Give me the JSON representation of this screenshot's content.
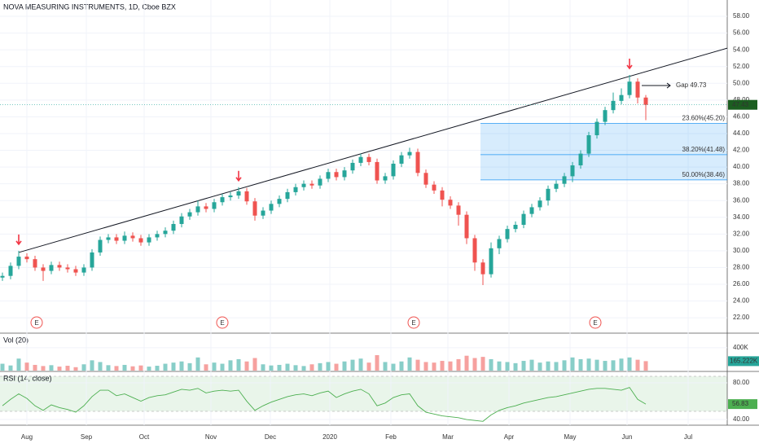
{
  "chart_data": {
    "type": "candlestick",
    "title": "NOVA MEASURING INSTRUMENTS, 1D, Cboe BZX",
    "up_color": "#26a69a",
    "down_color": "#ef5350",
    "xlim": [
      -0.3,
      89
    ],
    "xticks": [
      {
        "value": 3,
        "label": "Aug"
      },
      {
        "value": 10.3,
        "label": "Sep"
      },
      {
        "value": 17.4,
        "label": "Oct"
      },
      {
        "value": 25.6,
        "label": "Nov"
      },
      {
        "value": 32.9,
        "label": "Dec"
      },
      {
        "value": 40.2,
        "label": "2020"
      },
      {
        "value": 47.7,
        "label": "Feb"
      },
      {
        "value": 54.7,
        "label": "Mar"
      },
      {
        "value": 62.2,
        "label": "Apr"
      },
      {
        "value": 69.7,
        "label": "May"
      },
      {
        "value": 76.7,
        "label": "Jun"
      },
      {
        "value": 84.2,
        "label": "Jul"
      }
    ],
    "ylim": [
      20.26,
      59.95
    ],
    "yticks": [
      {
        "value": 22,
        "label": "22.00"
      },
      {
        "value": 24,
        "label": "24.00"
      },
      {
        "value": 26,
        "label": "26.00"
      },
      {
        "value": 28,
        "label": "28.00"
      },
      {
        "value": 30,
        "label": "30.00"
      },
      {
        "value": 32,
        "label": "32.00"
      },
      {
        "value": 34,
        "label": "34.00"
      },
      {
        "value": 36,
        "label": "36.00"
      },
      {
        "value": 38,
        "label": "38.00"
      },
      {
        "value": 40,
        "label": "40.00"
      },
      {
        "value": 42,
        "label": "42.00"
      },
      {
        "value": 44,
        "label": "44.00"
      },
      {
        "value": 46,
        "label": "46.00"
      },
      {
        "value": 48,
        "label": "48.00"
      },
      {
        "value": 50,
        "label": "50.00"
      },
      {
        "value": 52,
        "label": "52.00"
      },
      {
        "value": 54,
        "label": "54.00"
      },
      {
        "value": 56,
        "label": "56.00"
      },
      {
        "value": 58,
        "label": "58.00"
      }
    ],
    "open": [
      26.8,
      27.0,
      28.2,
      29.3,
      29.0,
      28.0,
      27.6,
      28.3,
      28.0,
      27.8,
      27.4,
      28.0,
      29.8,
      31.3,
      31.6,
      31.2,
      31.8,
      31.5,
      31.0,
      31.6,
      32.0,
      32.4,
      33.2,
      34.1,
      34.6,
      35.3,
      35.0,
      35.8,
      36.4,
      36.6,
      37.1,
      35.9,
      34.2,
      34.8,
      35.6,
      36.2,
      37.0,
      37.6,
      38.0,
      37.8,
      38.6,
      39.4,
      38.8,
      39.6,
      40.5,
      41.2,
      40.6,
      38.4,
      38.9,
      40.4,
      41.4,
      41.8,
      39.3,
      37.9,
      37.2,
      36.1,
      35.4,
      34.3,
      31.5,
      28.6,
      27.2,
      30.3,
      31.4,
      32.6,
      33.1,
      34.4,
      35.2,
      36.0,
      37.4,
      38.0,
      38.9,
      40.2,
      41.6,
      43.8,
      45.4,
      46.8,
      47.9,
      48.6,
      50.2,
      48.3
    ],
    "high": [
      27.4,
      28.6,
      30.0,
      29.7,
      29.4,
      28.4,
      28.7,
      28.7,
      28.4,
      28.2,
      28.4,
      30.2,
      31.7,
      32.0,
      32.0,
      32.3,
      32.2,
      31.9,
      32.0,
      32.4,
      32.8,
      33.6,
      34.5,
      35.0,
      36.0,
      35.7,
      36.2,
      36.8,
      37.0,
      37.6,
      37.5,
      36.3,
      35.2,
      36.0,
      36.6,
      37.4,
      38.0,
      38.4,
      38.4,
      39.0,
      39.8,
      39.8,
      40.0,
      40.9,
      41.6,
      41.6,
      41.0,
      39.3,
      40.8,
      41.8,
      42.3,
      42.2,
      39.7,
      38.3,
      37.6,
      36.5,
      35.8,
      34.7,
      31.9,
      29.0,
      31.0,
      31.8,
      33.0,
      33.5,
      34.8,
      35.6,
      36.4,
      37.8,
      38.4,
      39.3,
      40.6,
      42.0,
      44.2,
      45.8,
      47.2,
      48.9,
      49.4,
      51.0,
      50.6,
      48.6
    ],
    "low": [
      26.4,
      26.6,
      27.8,
      28.6,
      27.6,
      26.4,
      27.2,
      27.6,
      27.4,
      27.0,
      27.0,
      27.6,
      29.4,
      30.9,
      30.8,
      30.8,
      31.1,
      30.6,
      30.6,
      31.2,
      31.6,
      32.0,
      32.8,
      33.7,
      34.2,
      34.6,
      34.6,
      35.4,
      36.0,
      36.2,
      35.5,
      33.6,
      33.8,
      34.4,
      35.2,
      35.8,
      36.6,
      37.2,
      37.4,
      37.4,
      38.2,
      38.4,
      38.4,
      39.2,
      40.1,
      40.2,
      38.0,
      38.0,
      38.5,
      40.0,
      41.0,
      38.9,
      37.5,
      36.8,
      35.3,
      35.0,
      33.0,
      30.8,
      27.6,
      25.9,
      26.8,
      29.6,
      31.0,
      32.2,
      32.7,
      34.0,
      34.8,
      35.4,
      37.0,
      37.6,
      38.2,
      39.8,
      41.2,
      43.4,
      45.0,
      46.4,
      47.5,
      48.2,
      47.6,
      45.6
    ],
    "close": [
      27.0,
      28.2,
      29.3,
      29.0,
      28.0,
      27.6,
      28.3,
      28.0,
      27.8,
      27.4,
      28.0,
      29.8,
      31.3,
      31.6,
      31.2,
      31.8,
      31.5,
      31.0,
      31.6,
      32.0,
      32.4,
      33.2,
      34.1,
      34.6,
      35.3,
      35.0,
      35.8,
      36.4,
      36.6,
      37.1,
      35.9,
      34.2,
      34.8,
      35.6,
      36.2,
      37.0,
      37.6,
      38.0,
      37.8,
      38.6,
      39.4,
      38.8,
      39.6,
      40.5,
      41.2,
      40.6,
      38.4,
      38.9,
      40.4,
      41.4,
      41.8,
      39.3,
      37.9,
      37.2,
      36.1,
      35.4,
      34.3,
      31.5,
      28.6,
      27.2,
      30.3,
      31.4,
      32.6,
      33.1,
      34.4,
      35.2,
      36.0,
      37.4,
      38.0,
      38.9,
      40.2,
      41.6,
      43.8,
      45.4,
      46.8,
      47.9,
      48.6,
      50.2,
      48.3,
      47.43
    ],
    "last_price": 47.43,
    "trendline": {
      "x": [
        2,
        89
      ],
      "y": [
        29.8,
        54.2
      ]
    },
    "fib": {
      "x_start": 58.7,
      "levels": [
        {
          "value": 45.2,
          "label": "23.60%(45.20)"
        },
        {
          "value": 41.48,
          "label": "38.20%(41.48)"
        },
        {
          "value": 38.46,
          "label": "50.00%(38.46)"
        }
      ]
    },
    "signals": [
      2,
      29,
      77
    ],
    "earnings": {
      "x": [
        4.2,
        27,
        50.5,
        72.8
      ],
      "label": "E"
    },
    "gap": {
      "value": 49.73,
      "label": "Gap 49.73"
    },
    "volume": {
      "title": "Vol (20)",
      "ylim": [
        0,
        640
      ],
      "yticks": [
        {
          "value": 400,
          "label": "400K"
        }
      ],
      "last": {
        "value": 165.222,
        "label": "165.222K"
      },
      "values": [
        120,
        90,
        210,
        140,
        100,
        80,
        95,
        70,
        85,
        60,
        110,
        180,
        150,
        95,
        80,
        100,
        75,
        90,
        70,
        85,
        120,
        140,
        160,
        130,
        230,
        110,
        140,
        120,
        180,
        200,
        160,
        220,
        110,
        90,
        100,
        120,
        95,
        80,
        110,
        130,
        150,
        120,
        160,
        190,
        210,
        140,
        270,
        150,
        120,
        160,
        230,
        190,
        150,
        140,
        170,
        160,
        200,
        260,
        220,
        240,
        200,
        160,
        150,
        130,
        170,
        190,
        140,
        160,
        150,
        180,
        230,
        200,
        210,
        190,
        170,
        180,
        210,
        230,
        190,
        165.222
      ]
    },
    "rsi": {
      "title": "RSI (14, close)",
      "color": "#4caf50",
      "ylim": [
        33.8,
        91.6
      ],
      "yticks": [
        {
          "value": 80,
          "label": "80.00"
        },
        {
          "value": 40,
          "label": "40.00"
        }
      ],
      "last": 56.83,
      "values": [
        55,
        62,
        68,
        63,
        55,
        50,
        56,
        53,
        51,
        48,
        55,
        65,
        72,
        72,
        66,
        68,
        64,
        60,
        64,
        66,
        67,
        70,
        73,
        72,
        74,
        69,
        71,
        72,
        71,
        72,
        60,
        50,
        55,
        59,
        62,
        65,
        67,
        68,
        66,
        69,
        71,
        64,
        68,
        71,
        73,
        68,
        55,
        58,
        64,
        67,
        68,
        55,
        48,
        46,
        44,
        43,
        42,
        40,
        39,
        38,
        45,
        50,
        53,
        55,
        58,
        60,
        62,
        64,
        65,
        67,
        69,
        71,
        73,
        74,
        74,
        73,
        72,
        75,
        62,
        56.83
      ]
    }
  }
}
